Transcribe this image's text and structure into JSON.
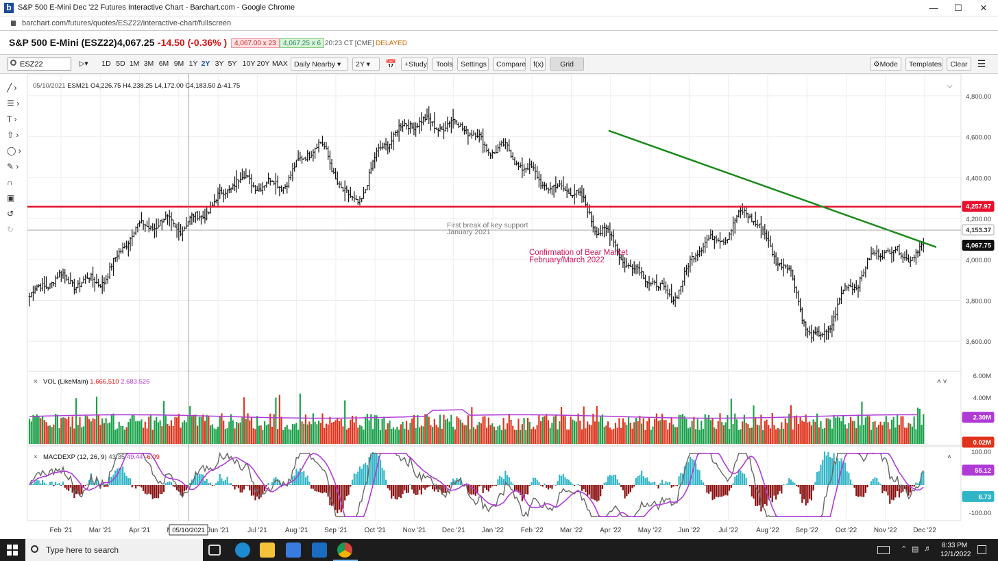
{
  "window": {
    "title": "S&P 500 E-Mini Dec '22 Futures Interactive Chart - Barchart.com - Google Chrome",
    "favicon_letter": "b",
    "url": "barchart.com/futures/quotes/ESZ22/interactive-chart/fullscreen"
  },
  "quote": {
    "name": "S&P 500 E-Mini (ESZ22)",
    "last": "4,067.25",
    "change": "-14.50 (-0.36% )",
    "bid": "4,067.00 x 23",
    "ask": "4,067.25 x 6",
    "time": "20:23 CT [CME]",
    "status": "DELAYED"
  },
  "toolbar": {
    "symbol": "ESZ22",
    "periods": [
      "1D",
      "5D",
      "1M",
      "3M",
      "6M",
      "9M",
      "1Y",
      "2Y",
      "3Y",
      "5Y",
      "10Y",
      "20Y",
      "MAX"
    ],
    "active_period": "2Y",
    "aggregation": "Daily Nearby",
    "range": "2Y",
    "study": "+Study",
    "tools": "Tools",
    "settings": "Settings",
    "compare": "Compare",
    "fx": "f(x)",
    "grid": "Grid",
    "mode": "Mode",
    "templates": "Templates",
    "clear": "Clear"
  },
  "chart_data": [
    {
      "type": "ohlc",
      "crosshair_legend": {
        "date": "05/10/2021",
        "symbol": "ESM21",
        "open": "4,226.75",
        "high": "4,238.25",
        "low": "4,172.00",
        "close": "4,183.50",
        "change": "-41.75"
      },
      "x_ticks": [
        "Feb '21",
        "Mar '21",
        "Apr '21",
        "May '21",
        "Jun '21",
        "Jul '21",
        "Aug '21",
        "Sep '21",
        "Oct '21",
        "Nov '21",
        "Dec '21",
        "Jan '22",
        "Feb '22",
        "Mar '22",
        "Apr '22",
        "May '22",
        "Jun '22",
        "Jul '22",
        "Aug '22",
        "Sep '22",
        "Oct '22",
        "Nov '22",
        "Dec '22"
      ],
      "y_ticks": [
        3600,
        3800,
        4000,
        4200,
        4400,
        4600,
        4800
      ],
      "y_tick_labels": [
        "3,600.00",
        "3,800.00",
        "4,000.00",
        "4,200.00",
        "4,400.00",
        "4,600.00",
        "4,800.00"
      ],
      "ylim": [
        3460,
        4880
      ],
      "date_pill": "05/10/2021",
      "price_labels": {
        "red_line": "4,257.97",
        "crosshair": "4,153.37",
        "last": "4,067.75"
      },
      "monthly_closes": [
        3820,
        3880,
        3940,
        4110,
        4190,
        4250,
        4360,
        4410,
        4520,
        4300,
        4590,
        4640,
        4700,
        4510,
        4440,
        4360,
        4110,
        3980,
        3800,
        4100,
        4240,
        3960,
        3650,
        3850,
        4050,
        4070
      ],
      "annotations": [
        {
          "text": "First break of key support",
          "text2": "January 2021",
          "color": "#777"
        },
        {
          "text": "Confirmation of Bear Market",
          "text2": "February/March 2022",
          "color": "#d4145a"
        }
      ],
      "horizontal_line": {
        "value": 4257.97,
        "color": "#e8112d"
      },
      "trendline": {
        "from": {
          "date": "Apr '22",
          "value": 4630
        },
        "to": {
          "date": "Dec '22",
          "value": 4060
        },
        "color": "#1a8a1a"
      }
    },
    {
      "type": "bar",
      "title": "VOL (LikeMain)",
      "value1": "1,666,510",
      "value2": "2,683,526",
      "y_tick_labels": [
        "6.00M",
        "4.00M"
      ],
      "ylim": [
        0,
        6000000
      ],
      "last_label": "2.30M",
      "min_label": "0.02M"
    },
    {
      "type": "line",
      "title": "MACDEXP (12, 26, 9)",
      "value1": "43.35",
      "value2": "49.44",
      "value3": "-6.09",
      "y_tick_labels": [
        "100.00",
        "-100.00"
      ],
      "ylim": [
        -130,
        130
      ],
      "macd_label": "55.12",
      "hist_label": "6.73"
    }
  ],
  "taskbar": {
    "search_placeholder": "Type here to search",
    "time": "8:33 PM",
    "date": "12/1/2022"
  },
  "colors": {
    "up": "#1aa14a",
    "down": "#e0331c",
    "macd_signal": "#b03ad6",
    "hist_up": "#30b5c7",
    "hist_down": "#8b1010"
  }
}
